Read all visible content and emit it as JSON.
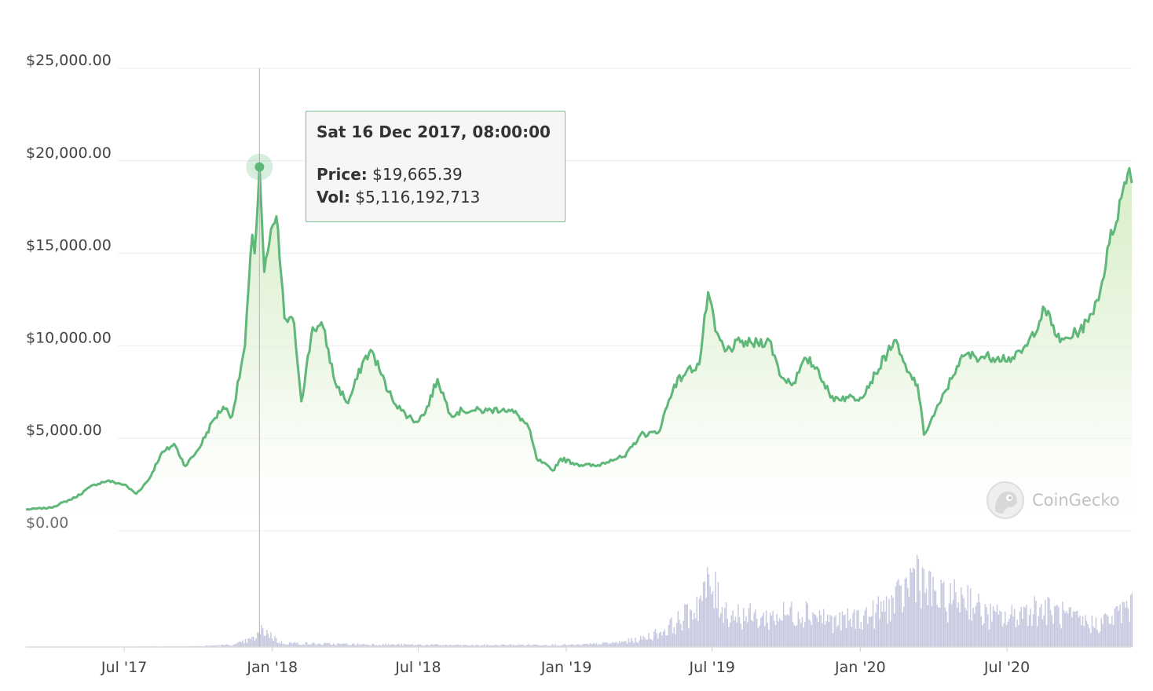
{
  "chart_data": {
    "type": "line",
    "y_ticks": [
      "$25,000.00",
      "$20,000.00",
      "$15,000.00",
      "$10,000.00",
      "$5,000.00",
      "$0.00"
    ],
    "x_ticks": [
      "Jul '17",
      "Jan '18",
      "Jul '18",
      "Jan '19",
      "Jul '19",
      "Jan '20",
      "Jul '20"
    ],
    "ylim": [
      0,
      25000
    ],
    "xlim": [
      "2017-03-01",
      "2020-12-03"
    ],
    "grid": true,
    "colors": {
      "line": "#5fb77a",
      "area": "#e6f4dc",
      "volume": "#c6c9df"
    },
    "price": {
      "x": [
        "2017-03-01",
        "2017-04-01",
        "2017-05-01",
        "2017-05-25",
        "2017-06-10",
        "2017-07-01",
        "2017-07-16",
        "2017-08-01",
        "2017-08-15",
        "2017-09-01",
        "2017-09-15",
        "2017-10-01",
        "2017-10-20",
        "2017-11-01",
        "2017-11-12",
        "2017-11-28",
        "2017-12-07",
        "2017-12-10",
        "2017-12-16",
        "2017-12-22",
        "2017-12-28",
        "2018-01-06",
        "2018-01-16",
        "2018-01-28",
        "2018-02-06",
        "2018-02-20",
        "2018-03-05",
        "2018-03-20",
        "2018-04-05",
        "2018-04-25",
        "2018-05-05",
        "2018-05-25",
        "2018-06-10",
        "2018-06-28",
        "2018-07-10",
        "2018-07-25",
        "2018-08-10",
        "2018-08-25",
        "2018-09-10",
        "2018-09-25",
        "2018-10-15",
        "2018-11-01",
        "2018-11-15",
        "2018-11-25",
        "2018-12-15",
        "2018-12-25",
        "2019-01-15",
        "2019-02-07",
        "2019-02-25",
        "2019-03-15",
        "2019-04-03",
        "2019-04-25",
        "2019-05-15",
        "2019-05-30",
        "2019-06-15",
        "2019-06-26",
        "2019-07-05",
        "2019-07-17",
        "2019-08-05",
        "2019-08-20",
        "2019-09-10",
        "2019-09-25",
        "2019-10-10",
        "2019-10-26",
        "2019-11-10",
        "2019-11-25",
        "2019-12-17",
        "2020-01-01",
        "2020-01-20",
        "2020-02-12",
        "2020-02-28",
        "2020-03-12",
        "2020-03-20",
        "2020-04-10",
        "2020-04-30",
        "2020-05-10",
        "2020-05-30",
        "2020-06-20",
        "2020-07-10",
        "2020-07-26",
        "2020-08-17",
        "2020-09-05",
        "2020-09-25",
        "2020-10-10",
        "2020-10-25",
        "2020-11-05",
        "2020-11-20",
        "2020-11-30",
        "2020-12-03"
      ],
      "y": [
        1150,
        1250,
        1800,
        2500,
        2700,
        2500,
        2000,
        2800,
        4100,
        4700,
        3500,
        4400,
        6000,
        6700,
        6200,
        10000,
        16000,
        15000,
        19665,
        14000,
        15500,
        17000,
        11500,
        11200,
        7000,
        11000,
        11000,
        8000,
        6900,
        9300,
        9700,
        7500,
        6500,
        5900,
        6400,
        8200,
        6300,
        6500,
        6500,
        6500,
        6600,
        6300,
        5600,
        3900,
        3250,
        3900,
        3600,
        3500,
        3850,
        4000,
        5200,
        5300,
        7900,
        8600,
        9000,
        12900,
        10800,
        9700,
        10200,
        10100,
        10300,
        8300,
        8000,
        9300,
        8700,
        7200,
        7200,
        7200,
        8500,
        10300,
        8600,
        7900,
        5200,
        7000,
        8900,
        9500,
        9400,
        9400,
        9300,
        10000,
        12000,
        10200,
        10700,
        11300,
        13000,
        15500,
        18000,
        19600,
        18800
      ]
    },
    "volume": {
      "x": [
        "2017-03-01",
        "2017-07-01",
        "2017-10-01",
        "2017-11-15",
        "2017-12-10",
        "2017-12-20",
        "2018-01-10",
        "2018-03-01",
        "2018-06-01",
        "2018-09-01",
        "2018-12-01",
        "2019-01-15",
        "2019-03-01",
        "2019-04-01",
        "2019-05-01",
        "2019-06-01",
        "2019-06-27",
        "2019-07-20",
        "2019-09-01",
        "2019-10-25",
        "2019-12-01",
        "2020-01-15",
        "2020-02-20",
        "2020-03-12",
        "2020-03-20",
        "2020-04-15",
        "2020-05-10",
        "2020-06-01",
        "2020-07-01",
        "2020-08-01",
        "2020-09-01",
        "2020-09-20",
        "2020-10-15",
        "2020-11-10",
        "2020-11-28",
        "2020-12-03"
      ],
      "v": [
        0.2,
        0.5,
        1.1,
        3.0,
        11.0,
        22.0,
        5.2,
        3.8,
        3.0,
        2.2,
        2.8,
        2.6,
        5.0,
        9.0,
        20.0,
        40.0,
        75.0,
        42.0,
        35.0,
        45.0,
        30.0,
        40.0,
        60.0,
        100.0,
        72.0,
        55.0,
        65.0,
        40.0,
        35.0,
        48.0,
        42.0,
        34.0,
        28.0,
        36.0,
        52.0,
        46.0
      ]
    },
    "marker": {
      "x": "2017-12-16",
      "y": 19665.39
    }
  },
  "tooltip": {
    "date": "Sat 16 Dec 2017, 08:00:00",
    "price_label": "Price:",
    "price_value": "$19,665.39",
    "vol_label": "Vol:",
    "vol_value": "$5,116,192,713"
  },
  "watermark": {
    "text": "CoinGecko",
    "icon": "gecko-logo-icon"
  }
}
